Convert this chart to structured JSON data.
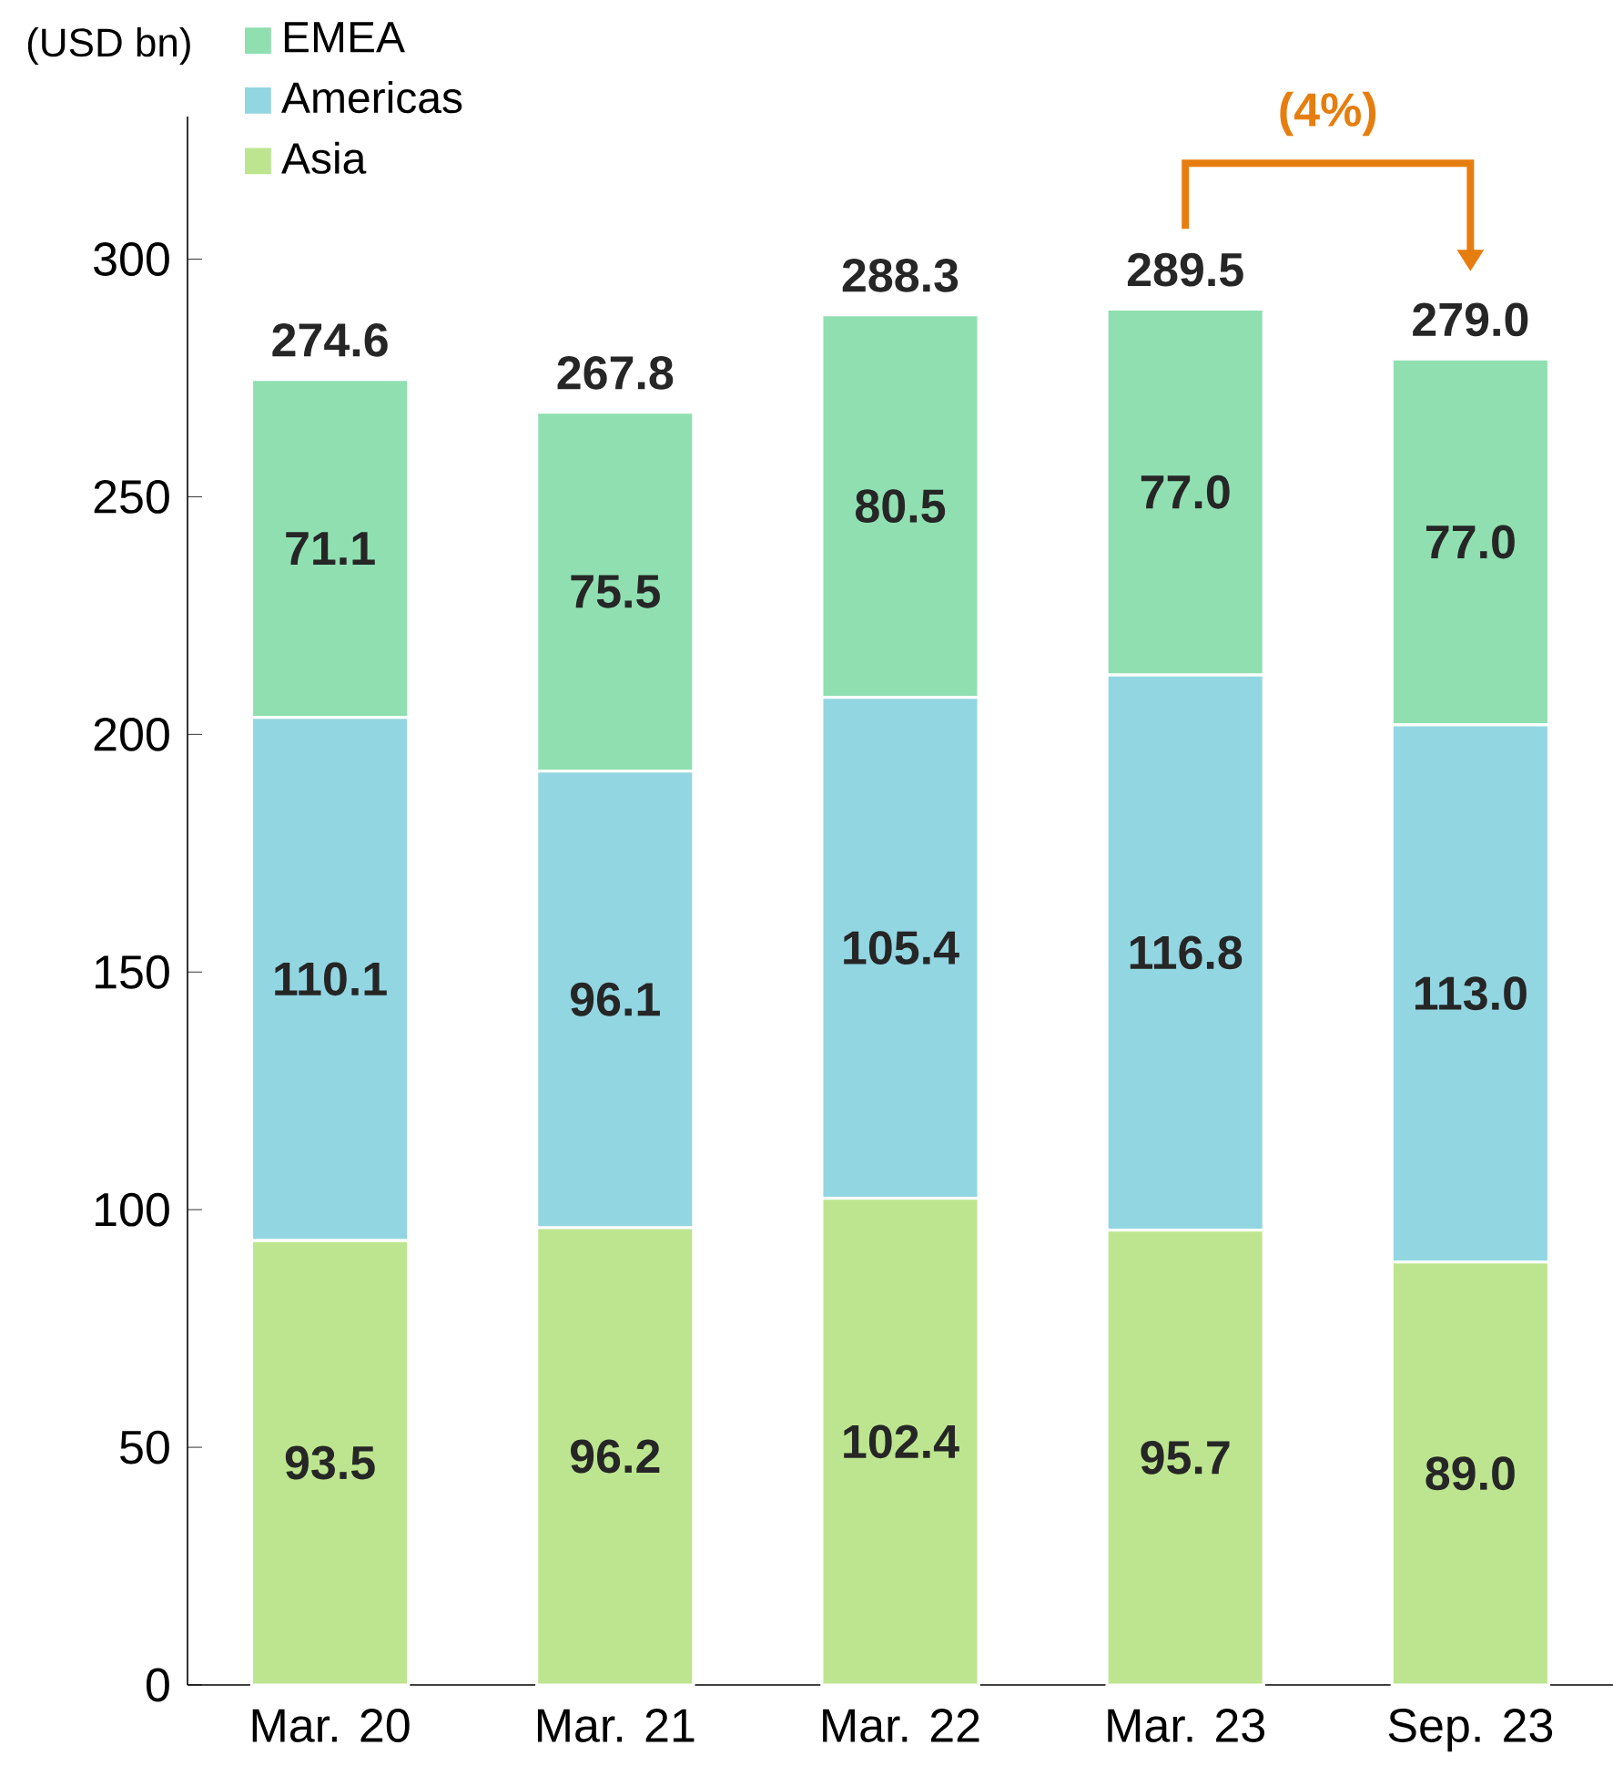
{
  "chart_data": {
    "type": "bar",
    "stacked": true,
    "ylabel": "(USD bn)",
    "categories": [
      "Mar. 20",
      "Mar. 21",
      "Mar. 22",
      "Mar. 23",
      "Sep. 23"
    ],
    "series": [
      {
        "name": "Asia",
        "color": "#bde58f",
        "values": [
          93.5,
          96.2,
          102.4,
          95.7,
          89.0
        ],
        "value_labels": [
          "93.5",
          "96.2",
          "102.4",
          "95.7",
          "89.0"
        ]
      },
      {
        "name": "Americas",
        "color": "#92d6e2",
        "values": [
          110.1,
          96.1,
          105.4,
          116.8,
          113.0
        ],
        "value_labels": [
          "110.1",
          "96.1",
          "105.4",
          "116.8",
          "113.0"
        ]
      },
      {
        "name": "EMEA",
        "color": "#8fdfb1",
        "values": [
          71.1,
          75.5,
          80.5,
          77.0,
          77.0
        ],
        "value_labels": [
          "71.1",
          "75.5",
          "80.5",
          "77.0",
          "77.0"
        ]
      }
    ],
    "totals": [
      "274.6",
      "267.8",
      "288.3",
      "289.5",
      "279.0"
    ],
    "ylim": [
      0,
      330
    ],
    "yticks": [
      0,
      50,
      100,
      150,
      200,
      250,
      300
    ],
    "legend": "top left",
    "annotations": [
      "(4%)"
    ]
  }
}
